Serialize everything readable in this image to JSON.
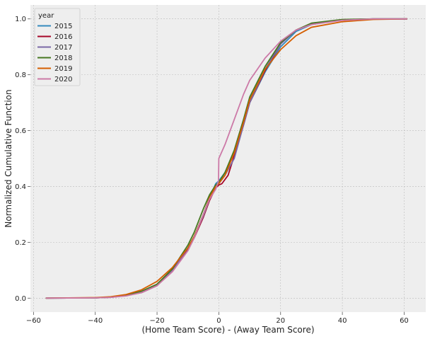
{
  "chart_data": {
    "type": "line",
    "title": "",
    "xlabel": "(Home Team Score) - (Away Team Score)",
    "ylabel": "Normalized Cumulative Function",
    "xlim": [
      -61,
      67
    ],
    "ylim": [
      -0.05,
      1.05
    ],
    "x_ticks": [
      -60,
      -40,
      -20,
      0,
      20,
      40,
      60
    ],
    "x_tick_labels": [
      "−60",
      "−40",
      "−20",
      "0",
      "20",
      "40",
      "60"
    ],
    "y_ticks": [
      0.0,
      0.2,
      0.4,
      0.6,
      0.8,
      1.0
    ],
    "y_tick_labels": [
      "0.0",
      "0.2",
      "0.4",
      "0.6",
      "0.8",
      "1.0"
    ],
    "grid": true,
    "legend": {
      "title": "year",
      "placement": "top-left"
    },
    "series": [
      {
        "name": "2015",
        "color": "#348ABD",
        "points": [
          [
            -56,
            0
          ],
          [
            -40,
            0.001
          ],
          [
            -35,
            0.004
          ],
          [
            -30,
            0.01
          ],
          [
            -25,
            0.02
          ],
          [
            -20,
            0.045
          ],
          [
            -15,
            0.1
          ],
          [
            -10,
            0.18
          ],
          [
            -8,
            0.22
          ],
          [
            -5,
            0.3
          ],
          [
            -3,
            0.36
          ],
          [
            -1,
            0.41
          ],
          [
            0,
            0.42
          ],
          [
            2,
            0.45
          ],
          [
            5,
            0.52
          ],
          [
            8,
            0.62
          ],
          [
            10,
            0.7
          ],
          [
            15,
            0.81
          ],
          [
            20,
            0.9
          ],
          [
            25,
            0.955
          ],
          [
            30,
            0.98
          ],
          [
            40,
            0.997
          ],
          [
            50,
            1.0
          ],
          [
            61,
            1.0
          ]
        ]
      },
      {
        "name": "2016",
        "color": "#A60628",
        "points": [
          [
            -56,
            0
          ],
          [
            -40,
            0.001
          ],
          [
            -35,
            0.003
          ],
          [
            -30,
            0.009
          ],
          [
            -25,
            0.02
          ],
          [
            -20,
            0.045
          ],
          [
            -15,
            0.1
          ],
          [
            -10,
            0.175
          ],
          [
            -8,
            0.215
          ],
          [
            -5,
            0.29
          ],
          [
            -3,
            0.35
          ],
          [
            -1,
            0.395
          ],
          [
            0,
            0.405
          ],
          [
            1,
            0.41
          ],
          [
            3,
            0.44
          ],
          [
            5,
            0.51
          ],
          [
            8,
            0.62
          ],
          [
            10,
            0.7
          ],
          [
            15,
            0.815
          ],
          [
            20,
            0.91
          ],
          [
            25,
            0.96
          ],
          [
            30,
            0.983
          ],
          [
            40,
            0.997
          ],
          [
            50,
            1.0
          ],
          [
            61,
            1.0
          ]
        ]
      },
      {
        "name": "2017",
        "color": "#7A68A6",
        "points": [
          [
            -56,
            0
          ],
          [
            -40,
            0.001
          ],
          [
            -35,
            0.003
          ],
          [
            -30,
            0.009
          ],
          [
            -25,
            0.022
          ],
          [
            -20,
            0.047
          ],
          [
            -15,
            0.1
          ],
          [
            -10,
            0.18
          ],
          [
            -8,
            0.22
          ],
          [
            -5,
            0.295
          ],
          [
            -3,
            0.355
          ],
          [
            -1,
            0.4
          ],
          [
            0,
            0.41
          ],
          [
            2,
            0.44
          ],
          [
            5,
            0.5
          ],
          [
            8,
            0.62
          ],
          [
            10,
            0.7
          ],
          [
            15,
            0.82
          ],
          [
            20,
            0.91
          ],
          [
            25,
            0.96
          ],
          [
            30,
            0.98
          ],
          [
            40,
            0.997
          ],
          [
            50,
            1.0
          ],
          [
            61,
            1.0
          ]
        ]
      },
      {
        "name": "2018",
        "color": "#467821",
        "points": [
          [
            -56,
            0
          ],
          [
            -40,
            0.001
          ],
          [
            -35,
            0.004
          ],
          [
            -30,
            0.01
          ],
          [
            -25,
            0.025
          ],
          [
            -20,
            0.05
          ],
          [
            -15,
            0.105
          ],
          [
            -10,
            0.19
          ],
          [
            -8,
            0.235
          ],
          [
            -5,
            0.32
          ],
          [
            -3,
            0.37
          ],
          [
            -1,
            0.405
          ],
          [
            0,
            0.415
          ],
          [
            2,
            0.45
          ],
          [
            5,
            0.53
          ],
          [
            8,
            0.64
          ],
          [
            10,
            0.72
          ],
          [
            15,
            0.83
          ],
          [
            20,
            0.915
          ],
          [
            25,
            0.96
          ],
          [
            30,
            0.985
          ],
          [
            40,
            0.998
          ],
          [
            50,
            1.0
          ],
          [
            61,
            1.0
          ]
        ]
      },
      {
        "name": "2019",
        "color": "#D55E00",
        "points": [
          [
            -56,
            0
          ],
          [
            -40,
            0.002
          ],
          [
            -35,
            0.005
          ],
          [
            -30,
            0.013
          ],
          [
            -25,
            0.03
          ],
          [
            -20,
            0.06
          ],
          [
            -15,
            0.11
          ],
          [
            -10,
            0.18
          ],
          [
            -8,
            0.22
          ],
          [
            -5,
            0.3
          ],
          [
            -3,
            0.36
          ],
          [
            -1,
            0.4
          ],
          [
            0,
            0.41
          ],
          [
            2,
            0.44
          ],
          [
            5,
            0.52
          ],
          [
            8,
            0.63
          ],
          [
            10,
            0.71
          ],
          [
            15,
            0.82
          ],
          [
            20,
            0.89
          ],
          [
            25,
            0.94
          ],
          [
            30,
            0.97
          ],
          [
            40,
            0.99
          ],
          [
            50,
            0.998
          ],
          [
            61,
            1.0
          ]
        ]
      },
      {
        "name": "2020",
        "color": "#CC79A7",
        "points": [
          [
            -56,
            0
          ],
          [
            -40,
            0.001
          ],
          [
            -35,
            0.003
          ],
          [
            -30,
            0.008
          ],
          [
            -25,
            0.02
          ],
          [
            -20,
            0.045
          ],
          [
            -15,
            0.095
          ],
          [
            -10,
            0.17
          ],
          [
            -8,
            0.215
          ],
          [
            -5,
            0.3
          ],
          [
            -3,
            0.355
          ],
          [
            -1,
            0.39
          ],
          [
            -0.1,
            0.42
          ],
          [
            0,
            0.5
          ],
          [
            2,
            0.55
          ],
          [
            5,
            0.64
          ],
          [
            8,
            0.73
          ],
          [
            10,
            0.78
          ],
          [
            15,
            0.86
          ],
          [
            20,
            0.92
          ],
          [
            25,
            0.96
          ],
          [
            30,
            0.98
          ],
          [
            40,
            0.995
          ],
          [
            50,
            1.0
          ],
          [
            61,
            1.0
          ]
        ]
      }
    ]
  }
}
